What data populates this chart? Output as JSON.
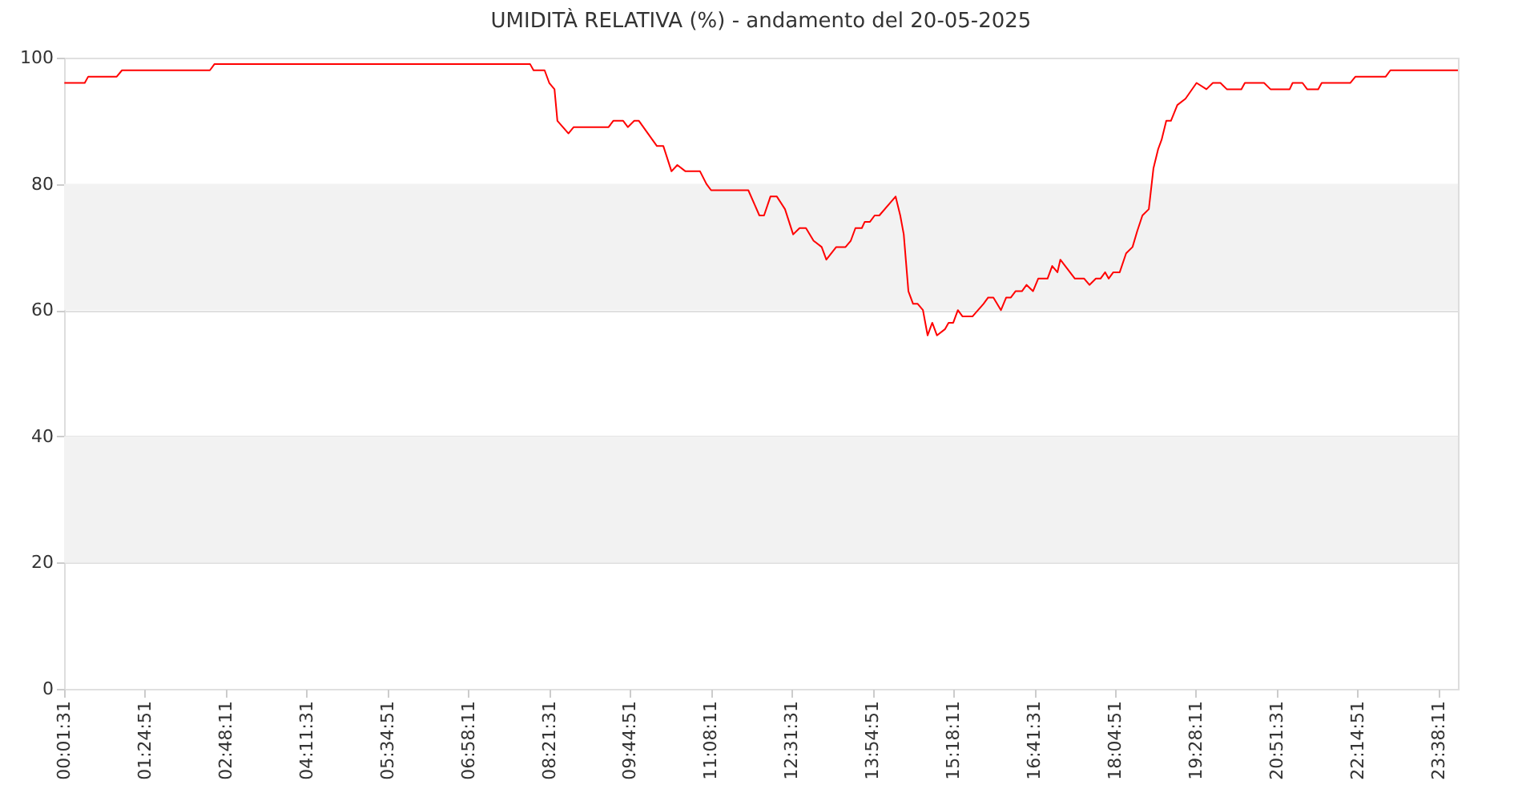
{
  "chart_data": {
    "type": "line",
    "title": "UMIDITÀ RELATIVA (%) - andamento del 20-05-2025",
    "x": [
      0.03,
      0.38,
      0.44,
      0.93,
      1.02,
      2.53,
      2.61,
      8.03,
      8.09,
      8.28,
      8.36,
      8.45,
      8.5,
      8.69,
      8.78,
      9.38,
      9.46,
      9.63,
      9.71,
      9.82,
      9.9,
      10.21,
      10.32,
      10.46,
      10.56,
      10.7,
      10.95,
      11.06,
      11.14,
      11.78,
      11.97,
      12.05,
      12.16,
      12.27,
      12.41,
      12.55,
      12.66,
      12.77,
      12.9,
      13.04,
      13.12,
      13.29,
      13.45,
      13.54,
      13.62,
      13.73,
      13.78,
      13.87,
      13.95,
      14.03,
      14.31,
      14.39,
      14.45,
      14.53,
      14.61,
      14.69,
      14.78,
      14.86,
      14.94,
      15.02,
      15.16,
      15.22,
      15.3,
      15.38,
      15.46,
      15.63,
      15.82,
      15.9,
      15.99,
      16.12,
      16.21,
      16.29,
      16.37,
      16.48,
      16.56,
      16.67,
      16.76,
      16.92,
      17.0,
      17.09,
      17.14,
      17.39,
      17.55,
      17.64,
      17.75,
      17.83,
      17.91,
      17.97,
      18.05,
      18.16,
      18.27,
      18.38,
      18.46,
      18.55,
      18.66,
      18.74,
      18.82,
      18.88,
      18.96,
      19.04,
      19.15,
      19.29,
      19.48,
      19.65,
      19.76,
      19.89,
      20.0,
      20.25,
      20.31,
      20.64,
      20.75,
      21.08,
      21.13,
      21.3,
      21.38,
      21.57,
      21.63,
      22.12,
      22.21,
      22.73,
      22.81,
      23.97
    ],
    "series": [
      {
        "color": "#ff0000",
        "values": [
          96,
          96,
          97,
          97,
          98,
          98,
          99,
          99,
          98,
          98,
          96,
          95,
          90,
          88,
          89,
          89,
          90,
          90,
          89,
          90,
          90,
          86,
          86,
          82,
          83,
          82,
          82,
          80,
          79,
          79,
          75,
          75,
          78,
          78,
          76,
          72,
          73,
          73,
          71,
          70,
          68,
          70,
          70,
          71,
          73,
          73,
          74,
          74,
          75,
          75,
          78,
          75,
          72,
          63,
          61,
          61,
          60,
          56,
          58,
          56,
          57,
          58,
          58,
          60,
          59,
          59,
          61,
          62,
          62,
          60,
          62,
          62,
          63,
          63,
          64,
          63,
          65,
          65,
          67,
          66,
          68,
          65,
          65,
          64,
          65,
          65,
          66,
          65,
          66,
          66,
          69,
          70,
          72.5,
          75,
          76,
          82.5,
          85.5,
          87,
          90,
          90,
          92.5,
          93.5,
          96,
          95,
          96,
          96,
          95,
          95,
          96,
          96,
          95,
          95,
          96,
          96,
          95,
          95,
          96,
          96,
          97,
          97,
          98,
          98
        ]
      }
    ],
    "xlim": [
      0.0253,
      23.97
    ],
    "xticks": [
      {
        "value": 0.0253,
        "label": "00:01:31"
      },
      {
        "value": 1.4142,
        "label": "01:24:51"
      },
      {
        "value": 2.8031,
        "label": "02:48:11"
      },
      {
        "value": 4.1919,
        "label": "04:11:31"
      },
      {
        "value": 5.5808,
        "label": "05:34:51"
      },
      {
        "value": 6.9697,
        "label": "06:58:11"
      },
      {
        "value": 8.3586,
        "label": "08:21:31"
      },
      {
        "value": 9.7475,
        "label": "09:44:51"
      },
      {
        "value": 11.1364,
        "label": "11:08:11"
      },
      {
        "value": 12.5253,
        "label": "12:31:31"
      },
      {
        "value": 13.9142,
        "label": "13:54:51"
      },
      {
        "value": 15.3031,
        "label": "15:18:11"
      },
      {
        "value": 16.6919,
        "label": "16:41:31"
      },
      {
        "value": 18.0808,
        "label": "18:04:51"
      },
      {
        "value": 19.4697,
        "label": "19:28:11"
      },
      {
        "value": 20.8586,
        "label": "20:51:31"
      },
      {
        "value": 22.2475,
        "label": "22:14:51"
      },
      {
        "value": 23.6364,
        "label": "23:38:11"
      }
    ],
    "ylim": [
      0,
      100
    ],
    "yticks": [
      0,
      20,
      40,
      60,
      80,
      100
    ],
    "bands": [
      {
        "axis": "y",
        "from": 20,
        "to": 40,
        "color": "#f2f2f2"
      },
      {
        "axis": "y",
        "from": 60,
        "to": 80,
        "color": "#f2f2f2"
      }
    ],
    "grid": "y",
    "marker": "none",
    "line_style": "solid"
  }
}
